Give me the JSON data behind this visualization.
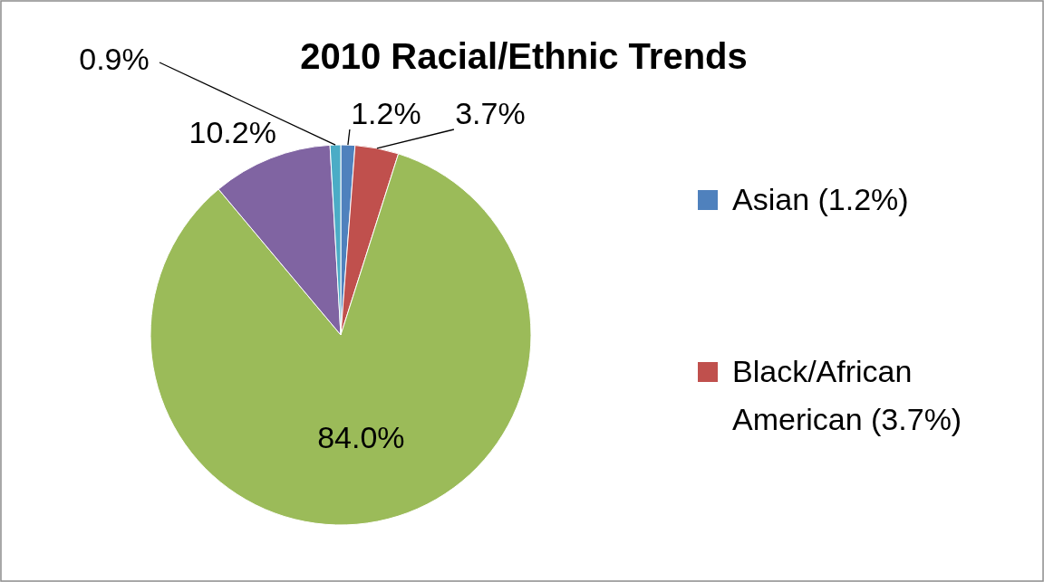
{
  "chart_data": {
    "type": "pie",
    "title": "2010 Racial/Ethnic Trends",
    "categories": [
      "Asian (1.2%)",
      "Black/African American (3.7%)",
      null,
      null,
      null
    ],
    "values": [
      1.2,
      3.7,
      84.0,
      10.2,
      0.9
    ],
    "value_labels": [
      "1.2%",
      "3.7%",
      "84.0%",
      "10.2%",
      "0.9%"
    ],
    "colors": [
      "#4f81bd",
      "#c0504d",
      "#9bbb59",
      "#8064a2",
      "#4bacc6"
    ],
    "legend": "right"
  }
}
